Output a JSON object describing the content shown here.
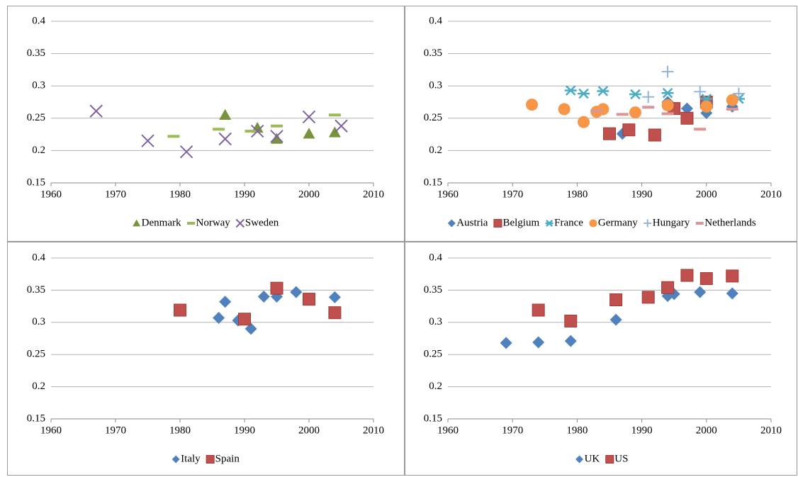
{
  "chart_data": [
    {
      "type": "scatter",
      "xlim": [
        1960,
        2010
      ],
      "xticks": [
        1960,
        1970,
        1980,
        1990,
        2000,
        2010
      ],
      "ylim": [
        0.15,
        0.4
      ],
      "yticks": [
        0.15,
        0.2,
        0.25,
        0.3,
        0.35,
        0.4
      ],
      "grid": true,
      "series": [
        {
          "name": "Denmark",
          "color": "#77933c",
          "marker": "triangle",
          "x": [
            1987,
            1992,
            1995,
            2000,
            2004
          ],
          "values": [
            0.255,
            0.235,
            0.218,
            0.226,
            0.228
          ]
        },
        {
          "name": "Norway",
          "color": "#9bbb59",
          "marker": "dash",
          "x": [
            1979,
            1986,
            1991,
            1995,
            2004
          ],
          "values": [
            0.222,
            0.233,
            0.23,
            0.238,
            0.255
          ]
        },
        {
          "name": "Sweden",
          "color": "#8064a2",
          "marker": "x",
          "x": [
            1967,
            1975,
            1981,
            1987,
            1992,
            1995,
            2000,
            2005
          ],
          "values": [
            0.261,
            0.215,
            0.198,
            0.218,
            0.23,
            0.222,
            0.252,
            0.238
          ]
        }
      ]
    },
    {
      "type": "scatter",
      "xlim": [
        1960,
        2010
      ],
      "xticks": [
        1960,
        1970,
        1980,
        1990,
        2000,
        2010
      ],
      "ylim": [
        0.15,
        0.4
      ],
      "yticks": [
        0.15,
        0.2,
        0.25,
        0.3,
        0.35,
        0.4
      ],
      "grid": true,
      "series": [
        {
          "name": "Austria",
          "color": "#4f81bd",
          "marker": "diamond",
          "x": [
            1987,
            1994,
            1997,
            2000,
            2004
          ],
          "values": [
            0.226,
            0.275,
            0.265,
            0.258,
            0.268
          ]
        },
        {
          "name": "Belgium",
          "color": "#c0504d",
          "marker": "square",
          "x": [
            1985,
            1988,
            1992,
            1995,
            1997,
            2000
          ],
          "values": [
            0.226,
            0.232,
            0.224,
            0.265,
            0.25,
            0.275
          ]
        },
        {
          "name": "France",
          "color": "#4bacc6",
          "marker": "asterisk",
          "x": [
            1979,
            1981,
            1984,
            1989,
            1994,
            2000,
            2005
          ],
          "values": [
            0.293,
            0.288,
            0.292,
            0.287,
            0.289,
            0.28,
            0.28
          ]
        },
        {
          "name": "Germany",
          "color": "#f79646",
          "marker": "circle",
          "x": [
            1973,
            1978,
            1981,
            1983,
            1984,
            1989,
            1994,
            2000,
            2004
          ],
          "values": [
            0.271,
            0.264,
            0.244,
            0.26,
            0.264,
            0.259,
            0.27,
            0.268,
            0.278
          ]
        },
        {
          "name": "Hungary",
          "color": "#95b3d7",
          "marker": "plus",
          "x": [
            1991,
            1994,
            1999,
            2005
          ],
          "values": [
            0.283,
            0.322,
            0.291,
            0.288
          ]
        },
        {
          "name": "Netherlands",
          "color": "#d99694",
          "marker": "dash",
          "x": [
            1983,
            1987,
            1991,
            1994,
            1999,
            2004
          ],
          "values": [
            0.261,
            0.256,
            0.267,
            0.257,
            0.233,
            0.264
          ]
        }
      ]
    },
    {
      "type": "scatter",
      "xlim": [
        1960,
        2010
      ],
      "xticks": [
        1960,
        1970,
        1980,
        1990,
        2000,
        2010
      ],
      "ylim": [
        0.15,
        0.4
      ],
      "yticks": [
        0.15,
        0.2,
        0.25,
        0.3,
        0.35,
        0.4
      ],
      "grid": true,
      "series": [
        {
          "name": "Italy",
          "color": "#4f81bd",
          "marker": "diamond",
          "x": [
            1986,
            1987,
            1989,
            1991,
            1993,
            1995,
            1998,
            2000,
            2004
          ],
          "values": [
            0.307,
            0.332,
            0.303,
            0.29,
            0.34,
            0.34,
            0.347,
            0.335,
            0.339
          ]
        },
        {
          "name": "Spain",
          "color": "#c0504d",
          "marker": "square",
          "x": [
            1980,
            1990,
            1995,
            2000,
            2004
          ],
          "values": [
            0.319,
            0.305,
            0.353,
            0.336,
            0.315
          ]
        }
      ]
    },
    {
      "type": "scatter",
      "xlim": [
        1960,
        2010
      ],
      "xticks": [
        1960,
        1970,
        1980,
        1990,
        2000,
        2010
      ],
      "ylim": [
        0.15,
        0.4
      ],
      "yticks": [
        0.15,
        0.2,
        0.25,
        0.3,
        0.35,
        0.4
      ],
      "grid": true,
      "series": [
        {
          "name": "UK",
          "color": "#4f81bd",
          "marker": "diamond",
          "x": [
            1969,
            1974,
            1979,
            1986,
            1991,
            1994,
            1995,
            1999,
            2004
          ],
          "values": [
            0.268,
            0.269,
            0.271,
            0.304,
            0.338,
            0.341,
            0.344,
            0.347,
            0.345
          ]
        },
        {
          "name": "US",
          "color": "#c0504d",
          "marker": "square",
          "x": [
            1974,
            1979,
            1986,
            1991,
            1994,
            1997,
            2000,
            2004
          ],
          "values": [
            0.319,
            0.302,
            0.335,
            0.339,
            0.354,
            0.373,
            0.368,
            0.372
          ]
        }
      ]
    }
  ]
}
